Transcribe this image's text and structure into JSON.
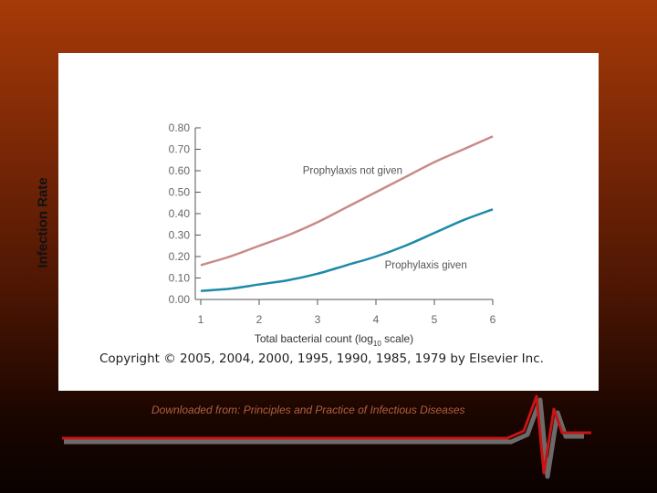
{
  "slide": {
    "ylabel": "Infection Rate",
    "source_note": "Downloaded from: Principles and Practice of Infectious Diseases",
    "decoration": "heartbeat-line-icon"
  },
  "figure": {
    "copyright": "Copyright © 2005, 2004, 2000, 1995, 1990, 1985, 1979 by Elsevier Inc."
  },
  "chart_data": {
    "type": "line",
    "title": "",
    "xlabel_main": "Total bacterial count (log",
    "xlabel_sub": "10",
    "xlabel_end": " scale)",
    "ylabel": "Infection Rate",
    "xlim": [
      1,
      6
    ],
    "ylim": [
      0,
      0.8
    ],
    "x_ticks": [
      1,
      2,
      3,
      4,
      5,
      6
    ],
    "y_ticks": [
      "0.00",
      "0.10",
      "0.20",
      "0.30",
      "0.40",
      "0.50",
      "0.60",
      "0.70",
      "0.80"
    ],
    "grid": false,
    "x": [
      1,
      1.5,
      2,
      2.5,
      3,
      3.5,
      4,
      4.5,
      5,
      5.5,
      6
    ],
    "series": [
      {
        "name": "Prophylaxis not given",
        "color": "#c98a8a",
        "values": [
          0.16,
          0.2,
          0.25,
          0.3,
          0.36,
          0.43,
          0.5,
          0.57,
          0.64,
          0.7,
          0.76
        ]
      },
      {
        "name": "Prophylaxis given",
        "color": "#1e8aa8",
        "values": [
          0.04,
          0.05,
          0.07,
          0.09,
          0.12,
          0.16,
          0.2,
          0.25,
          0.31,
          0.37,
          0.42
        ]
      }
    ]
  }
}
